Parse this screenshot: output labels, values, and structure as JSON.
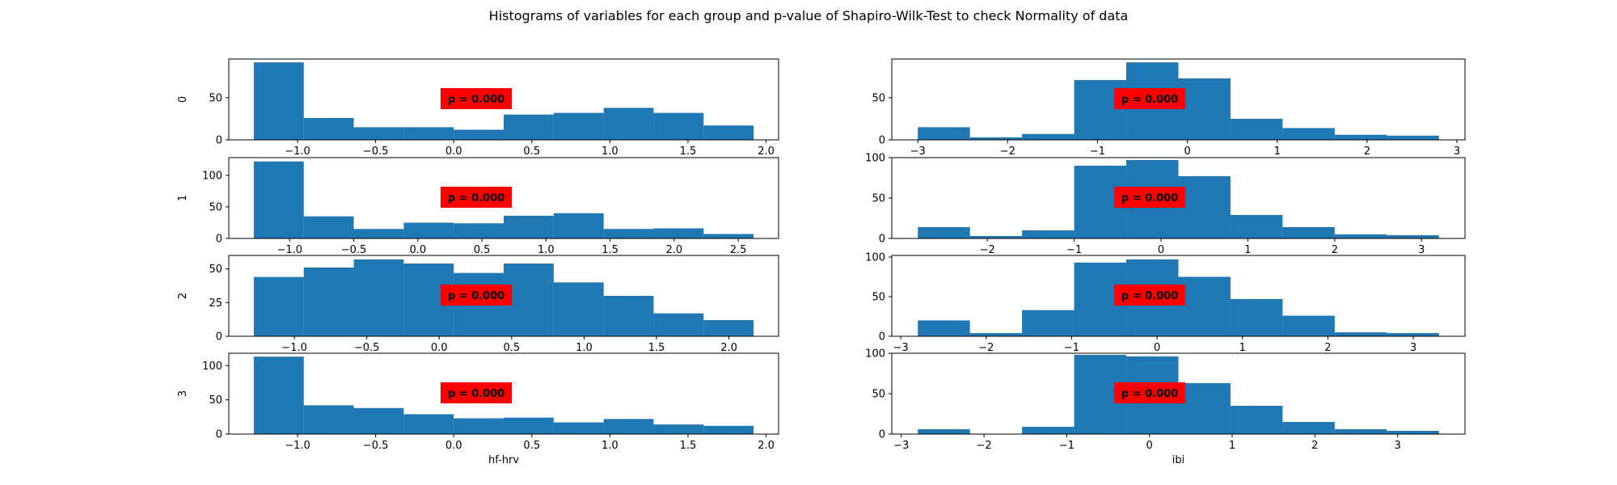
{
  "figure": {
    "suptitle": "Histograms of variables for each group and p-value of Shapiro-Wilk-Test to check Normality of data"
  },
  "chart_data": [
    {
      "type": "bar",
      "group": "0",
      "ylabel": "0",
      "xlabel": "",
      "bin_edges": [
        -1.28,
        -0.96,
        -0.64,
        -0.32,
        0.0,
        0.32,
        0.64,
        0.96,
        1.28,
        1.6,
        1.92
      ],
      "counts": [
        92,
        26,
        15,
        15,
        12,
        30,
        32,
        38,
        32,
        17
      ],
      "xlim": [
        -1.44,
        2.08
      ],
      "ylim": [
        0,
        96
      ],
      "xticks": [
        -1.0,
        -0.5,
        0.0,
        0.5,
        1.0,
        1.5,
        2.0
      ],
      "xtick_labels": [
        "−1.0",
        "−0.5",
        "0.0",
        "0.5",
        "1.0",
        "1.5",
        "2.0"
      ],
      "yticks": [
        0,
        50
      ],
      "ytick_labels": [
        "0",
        "50"
      ],
      "annotation": "p = 0.000",
      "bar_color": "#1f77b4",
      "annotation_color": "#ff0000"
    },
    {
      "type": "bar",
      "group": "0",
      "ylabel": "",
      "xlabel": "",
      "bin_edges": [
        -3.0,
        -2.42,
        -1.84,
        -1.26,
        -0.68,
        -0.1,
        0.48,
        1.06,
        1.64,
        2.22,
        2.8
      ],
      "counts": [
        15,
        3,
        7,
        71,
        92,
        73,
        25,
        14,
        6,
        5
      ],
      "xlim": [
        -3.29,
        3.09
      ],
      "ylim": [
        0,
        96
      ],
      "xticks": [
        -3,
        -2,
        -1,
        0,
        1,
        2,
        3
      ],
      "xtick_labels": [
        "−3",
        "−2",
        "−1",
        "0",
        "1",
        "2",
        "3"
      ],
      "yticks": [
        0,
        50
      ],
      "ytick_labels": [
        "0",
        "50"
      ],
      "annotation": "p = 0.000",
      "bar_color": "#1f77b4",
      "annotation_color": "#ff0000"
    },
    {
      "type": "bar",
      "group": "1",
      "ylabel": "1",
      "xlabel": "",
      "bin_edges": [
        -1.28,
        -0.89,
        -0.5,
        -0.11,
        0.28,
        0.67,
        1.06,
        1.45,
        1.84,
        2.23,
        2.62
      ],
      "counts": [
        122,
        35,
        15,
        25,
        24,
        36,
        40,
        15,
        16,
        7
      ],
      "xlim": [
        -1.475,
        2.815
      ],
      "ylim": [
        0,
        128
      ],
      "xticks": [
        -1.0,
        -0.5,
        0.0,
        0.5,
        1.0,
        1.5,
        2.0,
        2.5
      ],
      "xtick_labels": [
        "−1.0",
        "−0.5",
        "0.0",
        "0.5",
        "1.0",
        "1.5",
        "2.0",
        "2.5"
      ],
      "yticks": [
        0,
        50,
        100
      ],
      "ytick_labels": [
        "0",
        "50",
        "100"
      ],
      "annotation": "p = 0.000",
      "bar_color": "#1f77b4",
      "annotation_color": "#ff0000"
    },
    {
      "type": "bar",
      "group": "1",
      "ylabel": "",
      "xlabel": "",
      "bin_edges": [
        -2.8,
        -2.2,
        -1.6,
        -1.0,
        -0.4,
        0.2,
        0.8,
        1.4,
        2.0,
        2.6,
        3.2
      ],
      "counts": [
        14,
        3,
        10,
        90,
        97,
        77,
        29,
        14,
        5,
        4
      ],
      "xlim": [
        -3.1,
        3.5
      ],
      "ylim": [
        0,
        100
      ],
      "xticks": [
        -2,
        -1,
        0,
        1,
        2,
        3
      ],
      "xtick_labels": [
        "−2",
        "−1",
        "0",
        "1",
        "2",
        "3"
      ],
      "yticks": [
        0,
        50,
        100
      ],
      "ytick_labels": [
        "0",
        "50",
        "100"
      ],
      "annotation": "p = 0.000",
      "bar_color": "#1f77b4",
      "annotation_color": "#ff0000"
    },
    {
      "type": "bar",
      "group": "2",
      "ylabel": "2",
      "xlabel": "",
      "bin_edges": [
        -1.28,
        -0.935,
        -0.59,
        -0.245,
        0.1,
        0.445,
        0.79,
        1.135,
        1.48,
        1.825,
        2.17
      ],
      "counts": [
        44,
        51,
        57,
        54,
        47,
        54,
        40,
        30,
        17,
        12
      ],
      "xlim": [
        -1.4525,
        2.3425
      ],
      "ylim": [
        0,
        60
      ],
      "xticks": [
        -1.0,
        -0.5,
        0.0,
        0.5,
        1.0,
        1.5,
        2.0
      ],
      "xtick_labels": [
        "−1.0",
        "−0.5",
        "0.0",
        "0.5",
        "1.0",
        "1.5",
        "2.0"
      ],
      "yticks": [
        0,
        25,
        50
      ],
      "ytick_labels": [
        "0",
        "25",
        "50"
      ],
      "annotation": "p = 0.000",
      "bar_color": "#1f77b4",
      "annotation_color": "#ff0000"
    },
    {
      "type": "bar",
      "group": "2",
      "ylabel": "",
      "xlabel": "",
      "bin_edges": [
        -2.8,
        -2.19,
        -1.58,
        -0.97,
        -0.36,
        0.25,
        0.86,
        1.47,
        2.08,
        2.69,
        3.3
      ],
      "counts": [
        20,
        4,
        33,
        93,
        97,
        75,
        47,
        26,
        5,
        4
      ],
      "xlim": [
        -3.105,
        3.605
      ],
      "ylim": [
        0,
        102
      ],
      "xticks": [
        -3,
        -2,
        -1,
        0,
        1,
        2,
        3
      ],
      "xtick_labels": [
        "−3",
        "−2",
        "−1",
        "0",
        "1",
        "2",
        "3"
      ],
      "yticks": [
        0,
        50,
        100
      ],
      "ytick_labels": [
        "0",
        "50",
        "100"
      ],
      "annotation": "p = 0.000",
      "bar_color": "#1f77b4",
      "annotation_color": "#ff0000"
    },
    {
      "type": "bar",
      "group": "3",
      "ylabel": "3",
      "xlabel": "hf-hrv",
      "bin_edges": [
        -1.28,
        -0.96,
        -0.64,
        -0.32,
        0.0,
        0.32,
        0.64,
        0.96,
        1.28,
        1.6,
        1.92
      ],
      "counts": [
        113,
        42,
        38,
        29,
        23,
        24,
        17,
        22,
        14,
        12
      ],
      "xlim": [
        -1.44,
        2.08
      ],
      "ylim": [
        0,
        118
      ],
      "xticks": [
        -1.0,
        -0.5,
        0.0,
        0.5,
        1.0,
        1.5,
        2.0
      ],
      "xtick_labels": [
        "−1.0",
        "−0.5",
        "0.0",
        "0.5",
        "1.0",
        "1.5",
        "2.0"
      ],
      "yticks": [
        0,
        50,
        100
      ],
      "ytick_labels": [
        "0",
        "50",
        "100"
      ],
      "annotation": "p = 0.000",
      "bar_color": "#1f77b4",
      "annotation_color": "#ff0000"
    },
    {
      "type": "bar",
      "group": "3",
      "ylabel": "",
      "xlabel": "ibi",
      "bin_edges": [
        -2.8,
        -2.17,
        -1.54,
        -0.91,
        -0.28,
        0.35,
        0.98,
        1.61,
        2.24,
        2.87,
        3.5
      ],
      "counts": [
        6,
        0,
        9,
        98,
        96,
        63,
        35,
        15,
        6,
        4
      ],
      "xlim": [
        -3.115,
        3.815
      ],
      "ylim": [
        0,
        100
      ],
      "xticks": [
        -3,
        -2,
        -1,
        0,
        1,
        2,
        3
      ],
      "xtick_labels": [
        "−3",
        "−2",
        "−1",
        "0",
        "1",
        "2",
        "3"
      ],
      "yticks": [
        0,
        50,
        100
      ],
      "ytick_labels": [
        "0",
        "50",
        "100"
      ],
      "annotation": "p = 0.000",
      "bar_color": "#1f77b4",
      "annotation_color": "#ff0000"
    }
  ]
}
